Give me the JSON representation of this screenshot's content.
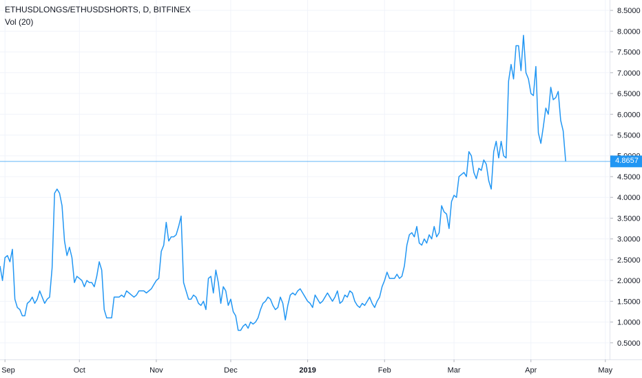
{
  "header": {
    "symbol_title": "ETHUSDLONGS/ETHUSDSHORTS, D, BITFINEX",
    "indicator_label": "Vol (20)"
  },
  "last_price": {
    "value": 4.8657,
    "label": "4.8657"
  },
  "colors": {
    "line": "#2196f3",
    "grid": "#f0f3fa",
    "axis_text": "#131722",
    "price_line": "#2196f3",
    "badge_bg": "#2196f3"
  },
  "chart_data": {
    "type": "line",
    "title": "ETHUSDLONGS/ETHUSDSHORTS, D, BITFINEX",
    "xlabel": "",
    "ylabel": "",
    "ylim": [
      0.1,
      8.75
    ],
    "y_ticks": [
      "0.5000",
      "1.0000",
      "1.5000",
      "2.0000",
      "2.5000",
      "3.0000",
      "3.5000",
      "4.0000",
      "4.5000",
      "5.0000",
      "5.5000",
      "6.0000",
      "6.5000",
      "7.0000",
      "7.5000",
      "8.0000",
      "8.5000"
    ],
    "x_ticks": [
      {
        "label": "Sep",
        "x": "2018-09-01",
        "bold": false
      },
      {
        "label": "Oct",
        "x": "2018-10-01",
        "bold": false
      },
      {
        "label": "Nov",
        "x": "2018-11-01",
        "bold": false
      },
      {
        "label": "Dec",
        "x": "2018-12-01",
        "bold": false
      },
      {
        "label": "2019",
        "x": "2019-01-01",
        "bold": true
      },
      {
        "label": "Feb",
        "x": "2019-02-01",
        "bold": false
      },
      {
        "label": "Mar",
        "x": "2019-03-01",
        "bold": false
      },
      {
        "label": "Apr",
        "x": "2019-04-01",
        "bold": false
      },
      {
        "label": "May",
        "x": "2019-05-01",
        "bold": false
      }
    ],
    "xlim": [
      "2018-08-30",
      "2019-05-03"
    ],
    "grid": true,
    "series": [
      {
        "name": "",
        "start_date": "2018-08-30",
        "values": [
          2.35,
          2.0,
          2.55,
          2.6,
          2.45,
          2.75,
          1.55,
          1.35,
          1.3,
          1.15,
          1.15,
          1.45,
          1.5,
          1.6,
          1.45,
          1.55,
          1.75,
          1.6,
          1.45,
          1.55,
          1.6,
          2.3,
          4.1,
          4.2,
          4.1,
          3.8,
          2.95,
          2.6,
          2.8,
          2.55,
          1.95,
          2.1,
          2.05,
          2.0,
          1.85,
          2.0,
          1.95,
          1.95,
          1.85,
          2.1,
          2.45,
          2.25,
          1.3,
          1.1,
          1.1,
          1.1,
          1.6,
          1.6,
          1.6,
          1.65,
          1.6,
          1.75,
          1.7,
          1.65,
          1.6,
          1.65,
          1.75,
          1.75,
          1.75,
          1.7,
          1.75,
          1.8,
          1.9,
          2.0,
          2.05,
          2.7,
          2.85,
          3.4,
          2.95,
          3.05,
          3.05,
          3.1,
          3.3,
          3.55,
          1.95,
          1.75,
          1.55,
          1.55,
          1.65,
          1.6,
          1.45,
          1.4,
          1.5,
          1.3,
          2.05,
          2.1,
          1.7,
          2.25,
          1.95,
          1.45,
          1.85,
          1.75,
          1.4,
          1.55,
          1.25,
          1.15,
          0.8,
          0.8,
          0.9,
          0.95,
          0.85,
          1.0,
          0.95,
          1.0,
          1.1,
          1.3,
          1.45,
          1.5,
          1.6,
          1.55,
          1.4,
          1.3,
          1.35,
          1.6,
          1.45,
          1.05,
          1.4,
          1.65,
          1.7,
          1.65,
          1.75,
          1.8,
          1.7,
          1.6,
          1.5,
          1.45,
          1.35,
          1.65,
          1.55,
          1.45,
          1.5,
          1.6,
          1.7,
          1.6,
          1.5,
          1.6,
          1.75,
          1.45,
          1.5,
          1.65,
          1.6,
          1.75,
          1.7,
          1.5,
          1.4,
          1.35,
          1.45,
          1.4,
          1.5,
          1.6,
          1.45,
          1.35,
          1.5,
          1.6,
          1.85,
          2.0,
          2.2,
          2.05,
          2.05,
          2.05,
          2.15,
          2.05,
          2.1,
          2.35,
          2.85,
          3.1,
          3.15,
          3.05,
          3.3,
          2.9,
          2.85,
          3.0,
          2.9,
          3.1,
          3.0,
          3.3,
          3.05,
          3.15,
          3.8,
          3.65,
          3.6,
          3.25,
          3.9,
          4.05,
          4.0,
          4.5,
          4.55,
          4.6,
          4.5,
          5.1,
          5.0,
          4.6,
          4.45,
          4.7,
          4.65,
          4.9,
          4.8,
          4.4,
          4.2,
          5.1,
          5.35,
          4.95,
          5.35,
          5.0,
          4.95,
          6.8,
          7.2,
          6.85,
          7.65,
          7.65,
          7.05,
          7.9,
          7.0,
          6.85,
          6.5,
          6.45,
          7.15,
          5.55,
          5.3,
          5.7,
          6.15,
          6.0,
          6.65,
          6.35,
          6.4,
          6.55,
          5.85,
          5.6,
          4.87
        ]
      }
    ]
  }
}
